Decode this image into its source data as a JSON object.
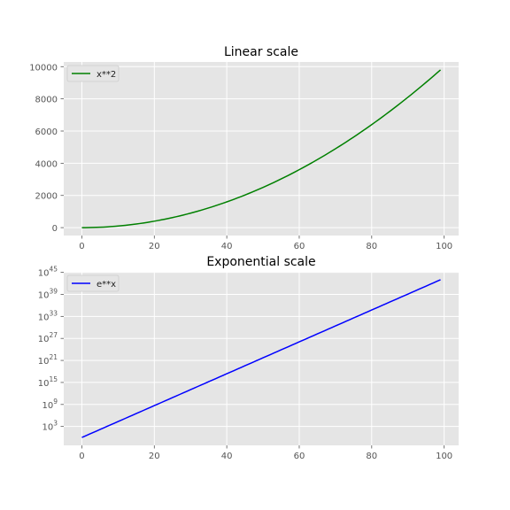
{
  "chart_data": [
    {
      "type": "line",
      "title": "Linear scale",
      "xlabel": "",
      "ylabel": "",
      "yscale": "linear",
      "x_range": [
        0,
        99
      ],
      "xlim": [
        -5,
        104
      ],
      "ylim": [
        -490,
        10290
      ],
      "xticks": [
        0,
        20,
        40,
        60,
        80,
        100
      ],
      "xtick_labels": [
        "0",
        "20",
        "40",
        "60",
        "80",
        "100"
      ],
      "yticks": [
        0,
        2000,
        4000,
        6000,
        8000,
        10000
      ],
      "ytick_labels": [
        "0",
        "2000",
        "4000",
        "6000",
        "8000",
        "10000"
      ],
      "grid": true,
      "legend_position": "upper-left",
      "series": [
        {
          "name": "x**2",
          "color": "#008000",
          "function": "x**2",
          "x": [
            0,
            10,
            20,
            30,
            40,
            50,
            60,
            70,
            80,
            90,
            99
          ],
          "y": [
            0,
            100,
            400,
            900,
            1600,
            2500,
            3600,
            4900,
            6400,
            8100,
            9801
          ]
        }
      ]
    },
    {
      "type": "line",
      "title": "Exponential scale",
      "xlabel": "",
      "ylabel": "",
      "yscale": "log",
      "x_range": [
        0,
        99
      ],
      "xlim": [
        -5,
        104
      ],
      "ylim_log10": [
        -2.15,
        45.15
      ],
      "xticks": [
        0,
        20,
        40,
        60,
        80,
        100
      ],
      "xtick_labels": [
        "0",
        "20",
        "40",
        "60",
        "80",
        "100"
      ],
      "yticks_exponents": [
        3,
        9,
        15,
        21,
        27,
        33,
        39,
        45
      ],
      "ytick_base": "10",
      "grid": true,
      "legend_position": "upper-left",
      "series": [
        {
          "name": "e**x",
          "color": "#0000ff",
          "function": "e**x",
          "x": [
            0,
            20,
            40,
            60,
            80,
            99
          ],
          "y": [
            1,
            485000000.0,
            2.35e+17,
            1.14e+26,
            5.54e+34,
            9.89e+42
          ]
        }
      ]
    }
  ],
  "style": {
    "axes_bg": "#e5e5e5",
    "grid_color": "#ffffff",
    "tick_color": "#555555",
    "title_color": "#000000"
  }
}
